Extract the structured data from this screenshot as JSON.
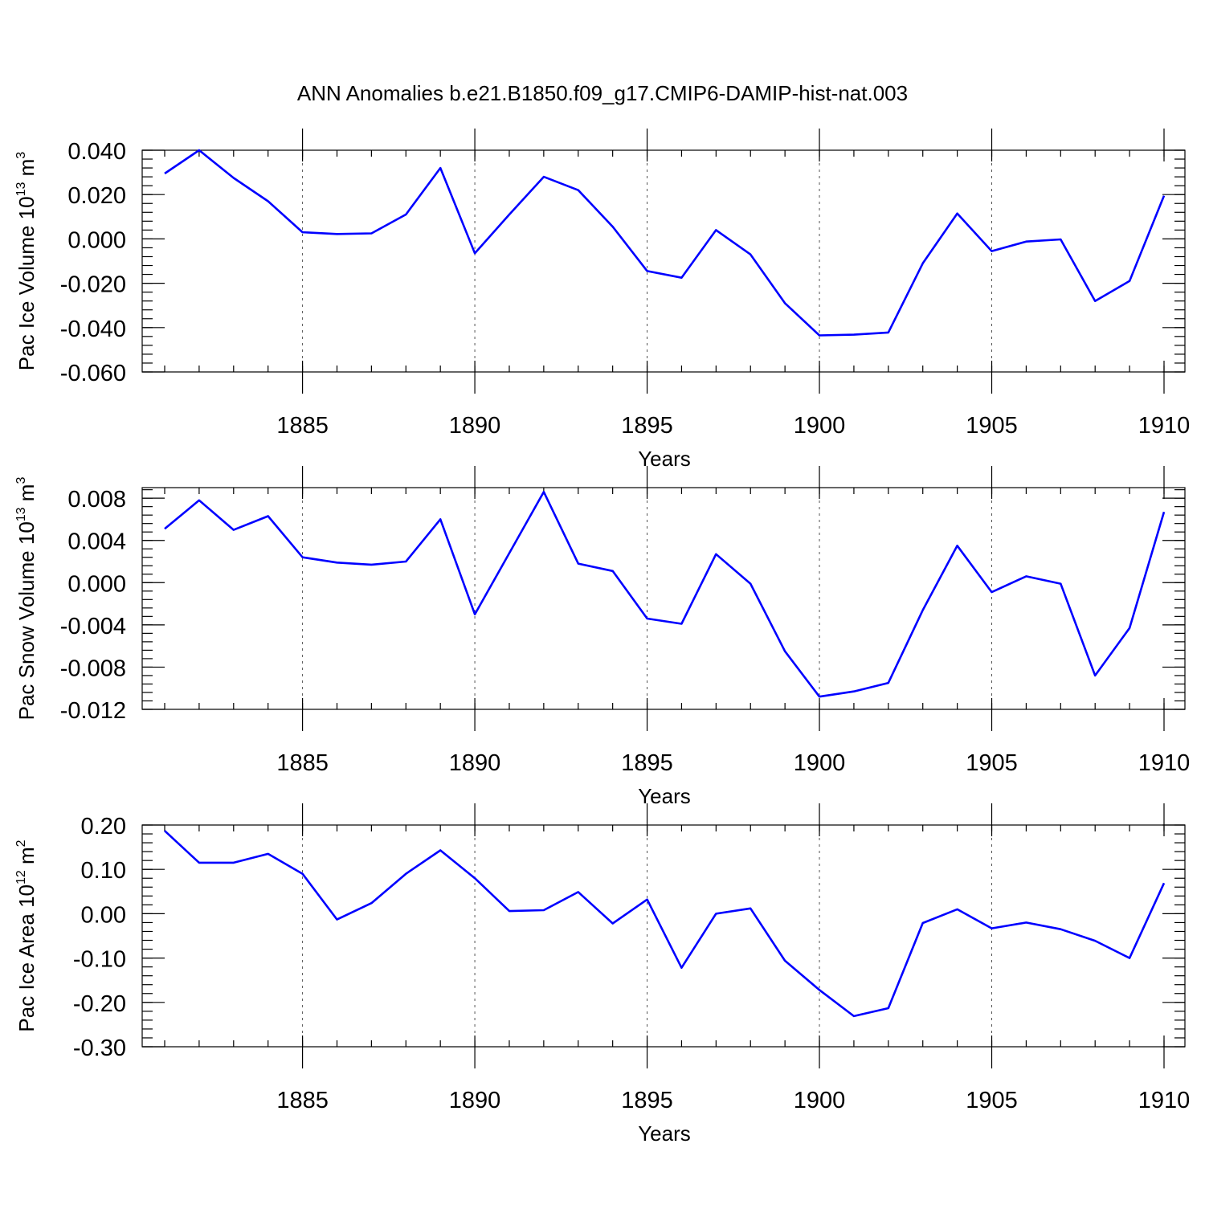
{
  "title": "ANN Anomalies b.e21.B1850.f09_g17.CMIP6-DAMIP-hist-nat.003",
  "line_color": "#0000ff",
  "chart_data": [
    {
      "type": "line",
      "ylabel_main": "Pac Ice Volume 10",
      "ylabel_sup1": "13",
      "ylabel_unit": " m",
      "ylabel_sup2": "3",
      "xlabel": "Years",
      "xlim": [
        1881,
        1910
      ],
      "ylim": [
        -0.06,
        0.04
      ],
      "yticks": [
        0.04,
        0.02,
        0.0,
        -0.02,
        -0.04,
        -0.06
      ],
      "yticklabels": [
        "0.040",
        "0.020",
        "0.000",
        "-0.020",
        "-0.040",
        "-0.060"
      ],
      "xticks": [
        1885,
        1890,
        1895,
        1900,
        1905,
        1910
      ],
      "xticklabels": [
        "1885",
        "1890",
        "1895",
        "1900",
        "1905",
        "1910"
      ],
      "grid": "vertical dashed at major x ticks",
      "x": [
        1881,
        1882,
        1883,
        1884,
        1885,
        1886,
        1887,
        1888,
        1889,
        1890,
        1891,
        1892,
        1893,
        1894,
        1895,
        1896,
        1897,
        1898,
        1899,
        1900,
        1901,
        1902,
        1903,
        1904,
        1905,
        1906,
        1907,
        1908,
        1909,
        1910
      ],
      "values": [
        0.0295,
        0.04,
        0.0275,
        0.017,
        0.003,
        0.0022,
        0.0025,
        0.011,
        0.032,
        -0.0065,
        0.011,
        0.028,
        0.022,
        0.0055,
        -0.0145,
        -0.0175,
        0.004,
        -0.007,
        -0.029,
        -0.0435,
        -0.0432,
        -0.0422,
        -0.011,
        0.0115,
        -0.0055,
        -0.0012,
        -0.0002,
        -0.028,
        -0.019,
        0.0195
      ]
    },
    {
      "type": "line",
      "ylabel_main": "Pac Snow Volume 10",
      "ylabel_sup1": "13",
      "ylabel_unit": " m",
      "ylabel_sup2": "3",
      "xlabel": "Years",
      "xlim": [
        1881,
        1910
      ],
      "ylim": [
        -0.012,
        0.009
      ],
      "yticks": [
        0.008,
        0.004,
        0.0,
        -0.004,
        -0.008,
        -0.012
      ],
      "yticklabels": [
        "0.008",
        "0.004",
        "0.000",
        "-0.004",
        "-0.008",
        "-0.012"
      ],
      "xticks": [
        1885,
        1890,
        1895,
        1900,
        1905,
        1910
      ],
      "xticklabels": [
        "1885",
        "1890",
        "1895",
        "1900",
        "1905",
        "1910"
      ],
      "grid": "vertical dashed at major x ticks",
      "x": [
        1881,
        1882,
        1883,
        1884,
        1885,
        1886,
        1887,
        1888,
        1889,
        1890,
        1891,
        1892,
        1893,
        1894,
        1895,
        1896,
        1897,
        1898,
        1899,
        1900,
        1901,
        1902,
        1903,
        1904,
        1905,
        1906,
        1907,
        1908,
        1909,
        1910
      ],
      "values": [
        0.0051,
        0.0078,
        0.005,
        0.0063,
        0.0024,
        0.0019,
        0.0017,
        0.002,
        0.006,
        -0.003,
        0.0028,
        0.0086,
        0.0018,
        0.0011,
        -0.0034,
        -0.0039,
        0.0027,
        -0.0001,
        -0.0065,
        -0.0108,
        -0.0103,
        -0.0095,
        -0.0026,
        0.0035,
        -0.0009,
        0.0006,
        -0.0001,
        -0.0088,
        -0.0043,
        0.0067
      ]
    },
    {
      "type": "line",
      "ylabel_main": "Pac Ice Area 10",
      "ylabel_sup1": "12",
      "ylabel_unit": " m",
      "ylabel_sup2": "2",
      "xlabel": "Years",
      "xlim": [
        1881,
        1910
      ],
      "ylim": [
        -0.3,
        0.2
      ],
      "yticks": [
        0.2,
        0.1,
        0.0,
        -0.1,
        -0.2,
        -0.3
      ],
      "yticklabels": [
        "0.20",
        "0.10",
        "0.00",
        "-0.10",
        "-0.20",
        "-0.30"
      ],
      "xticks": [
        1885,
        1890,
        1895,
        1900,
        1905,
        1910
      ],
      "xticklabels": [
        "1885",
        "1890",
        "1895",
        "1900",
        "1905",
        "1910"
      ],
      "grid": "vertical dashed at major x ticks",
      "x": [
        1881,
        1882,
        1883,
        1884,
        1885,
        1886,
        1887,
        1888,
        1889,
        1890,
        1891,
        1892,
        1893,
        1894,
        1895,
        1896,
        1897,
        1898,
        1899,
        1900,
        1901,
        1902,
        1903,
        1904,
        1905,
        1906,
        1907,
        1908,
        1909,
        1910
      ],
      "values": [
        0.187,
        0.115,
        0.115,
        0.135,
        0.09,
        -0.013,
        0.024,
        0.09,
        0.143,
        0.08,
        0.006,
        0.008,
        0.049,
        -0.022,
        0.032,
        -0.122,
        0.0,
        0.012,
        -0.106,
        -0.172,
        -0.231,
        -0.213,
        -0.021,
        0.01,
        -0.033,
        -0.02,
        -0.035,
        -0.061,
        -0.1,
        0.069
      ]
    }
  ]
}
